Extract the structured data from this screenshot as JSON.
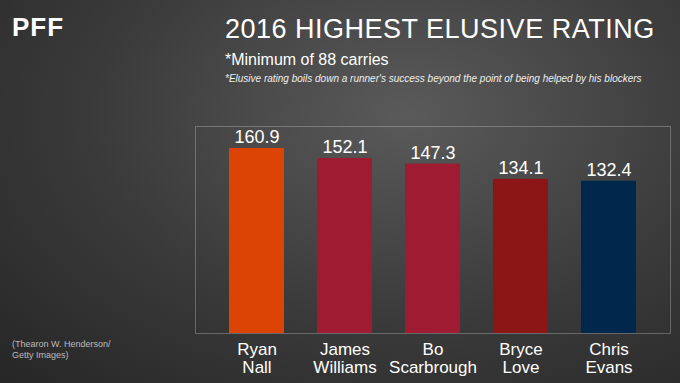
{
  "chart_data": {
    "type": "bar",
    "logo": "PFF",
    "title": "2016 HIGHEST ELUSIVE RATING",
    "subtitle": "*Minimum of 88 carries",
    "note": "*Elusive rating boils down a runner's success beyond the point of being helped by his blockers",
    "credit": "(Thearon W. Henderson/ Getty Images)",
    "categories": [
      "Ryan Nall",
      "James Williams",
      "Bo Scarbrough",
      "Bryce Love",
      "Chris Evans"
    ],
    "values": [
      160.9,
      152.1,
      147.3,
      134.1,
      132.4
    ],
    "colors": [
      "#dc4405",
      "#9e1b32",
      "#9e1b32",
      "#8c1515",
      "#00274c"
    ],
    "ylim": [
      0,
      180
    ],
    "yticks": [],
    "data_labels": true,
    "tick_labels": "x"
  }
}
